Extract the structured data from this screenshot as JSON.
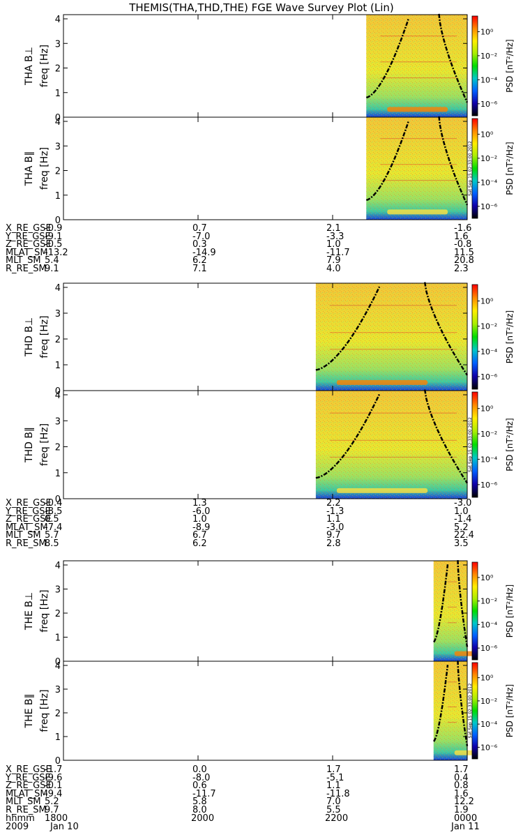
{
  "title": "THEMIS(THA,THD,THE) FGE Wave Survey Plot (Lin)",
  "colorbar": {
    "label": "PSD [nT²/Hz]",
    "ticks": [
      "10⁰",
      "10⁻²",
      "10⁻⁴",
      "10⁻⁶"
    ],
    "colors": [
      "#ff0000",
      "#ff8800",
      "#ffee00",
      "#aaee00",
      "#00dd00",
      "#00c8c8",
      "#0060ff",
      "#1000aa",
      "#000000"
    ]
  },
  "freq_ticks": [
    "0",
    "1",
    "2",
    "3",
    "4"
  ],
  "freq_label": "freq [Hz]",
  "stamp": "Sat Sep 15 02:33:00 2012",
  "ephemeris_labels": [
    "X_RE_GSE",
    "Y_RE_GSE",
    "Z_RE_GSE",
    "MLAT_SM",
    "MLT_SM",
    "R_RE_SM"
  ],
  "time_axis": {
    "row1_label": "hhmm",
    "row1": [
      "1800",
      "2000",
      "2200",
      "0000"
    ],
    "row2_label": "2009",
    "row2": [
      "Jan 10",
      "Jan 11"
    ]
  },
  "chart_data": [
    {
      "type": "heatmap",
      "probe": "THA",
      "panels": [
        "THA B⊥",
        "THA B∥"
      ],
      "xlabel": "hhmm",
      "ylabel": "freq [Hz]",
      "ylim": [
        0,
        4
      ],
      "x_ticks": [
        "1800",
        "2000",
        "2200",
        "0000"
      ],
      "data_start_hhmm": "2230",
      "ephemeris": [
        [
          "-0.9",
          "0.7",
          "2.1",
          "-1.6"
        ],
        [
          "-9.1",
          "-7.0",
          "-3.3",
          "1.6"
        ],
        [
          "-0.5",
          "0.3",
          "1.0",
          "-0.8"
        ],
        [
          "-13.2",
          "-14.9",
          "-11.7",
          "11.5"
        ],
        [
          "5.4",
          "6.2",
          "7.9",
          "20.8"
        ],
        [
          "9.1",
          "7.1",
          "4.0",
          "2.3"
        ]
      ]
    },
    {
      "type": "heatmap",
      "probe": "THD",
      "panels": [
        "THD B⊥",
        "THD B∥"
      ],
      "xlabel": "hhmm",
      "ylabel": "freq [Hz]",
      "ylim": [
        0,
        4
      ],
      "x_ticks": [
        "1800",
        "2000",
        "2200",
        "0000"
      ],
      "data_start_hhmm": "2145",
      "ephemeris": [
        [
          "-0.4",
          "1.3",
          "2.2",
          "-3.0"
        ],
        [
          "-8.5",
          "-6.0",
          "-1.3",
          "1.0"
        ],
        [
          "0.5",
          "1.0",
          "1.1",
          "-1.4"
        ],
        [
          "-7.4",
          "-8.9",
          "-3.0",
          "5.2"
        ],
        [
          "5.7",
          "6.7",
          "9.7",
          "22.4"
        ],
        [
          "8.5",
          "6.2",
          "2.8",
          "3.5"
        ]
      ]
    },
    {
      "type": "heatmap",
      "probe": "THE",
      "panels": [
        "THE B⊥",
        "THE B∥"
      ],
      "xlabel": "hhmm",
      "ylabel": "freq [Hz]",
      "ylim": [
        0,
        4
      ],
      "x_ticks": [
        "1800",
        "2000",
        "2200",
        "0000"
      ],
      "data_start_hhmm": "2330",
      "ephemeris": [
        [
          "-1.7",
          "0.0",
          "1.7",
          "1.7"
        ],
        [
          "-9.6",
          "-8.0",
          "-5.1",
          "0.4"
        ],
        [
          "-0.1",
          "0.6",
          "1.1",
          "0.8"
        ],
        [
          "-9.4",
          "-11.7",
          "-11.8",
          "1.6"
        ],
        [
          "5.2",
          "5.8",
          "7.0",
          "12.2"
        ],
        [
          "9.7",
          "8.0",
          "5.5",
          "1.9"
        ]
      ]
    }
  ]
}
